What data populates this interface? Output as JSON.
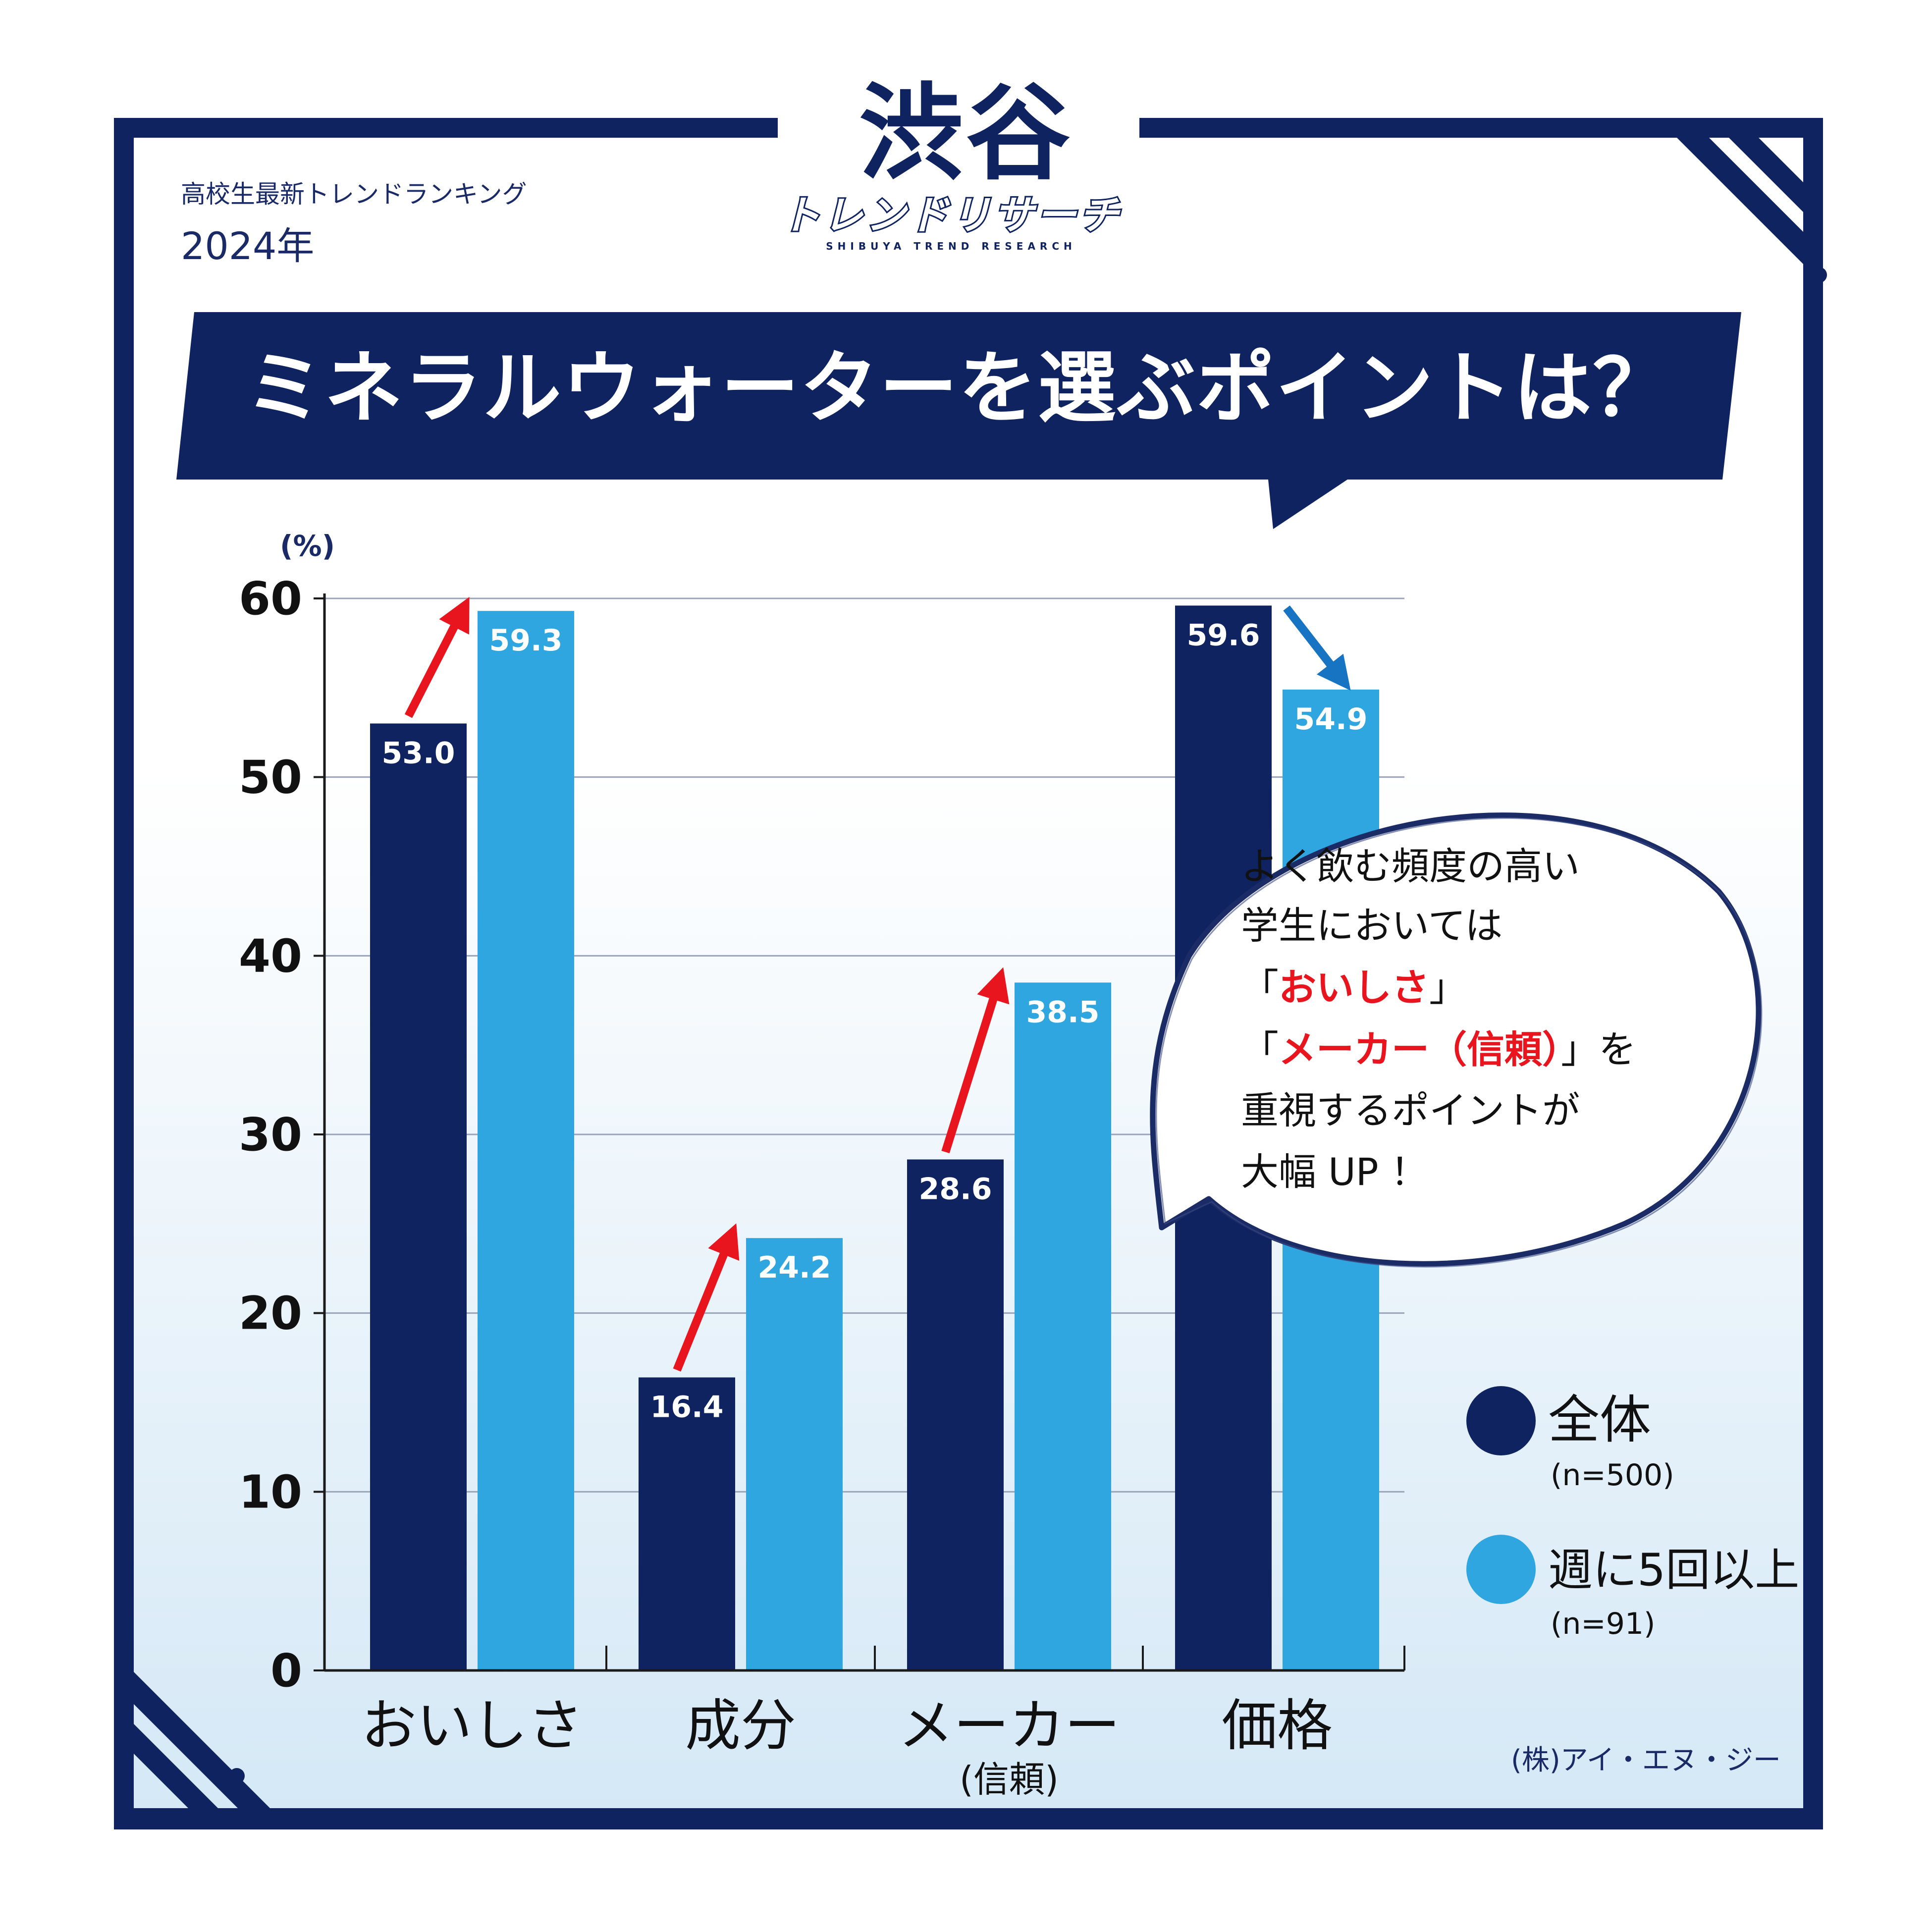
{
  "header": {
    "subtitle": "高校生最新トレンドランキング",
    "year": "2024年",
    "logo_main": "渋谷",
    "logo_script": "トレンドリサーチ",
    "logo_sub": "SHIBUYA TREND RESEARCH"
  },
  "title": "ミネラルウォーターを選ぶポイントは？",
  "chart_data": {
    "type": "bar",
    "ylabel": "(%)",
    "ylim": [
      0,
      60
    ],
    "yticks": [
      "0",
      "10",
      "20",
      "30",
      "40",
      "50",
      "60"
    ],
    "grid": true,
    "categories": [
      {
        "label": "おいしさ",
        "sub": ""
      },
      {
        "label": "成分",
        "sub": ""
      },
      {
        "label": "メーカー",
        "sub": "(信頼)"
      },
      {
        "label": "価格",
        "sub": ""
      }
    ],
    "series": [
      {
        "name": "全体",
        "sample": "(n=500)",
        "color": "#0e2360",
        "values": [
          53.0,
          16.4,
          28.6,
          59.6
        ]
      },
      {
        "name": "週に5回以上",
        "sample": "(n=91)",
        "color": "#2fa6e0",
        "values": [
          59.3,
          24.2,
          38.5,
          54.9
        ]
      }
    ],
    "value_labels": [
      [
        "53.0",
        "16.4",
        "28.6",
        "59.6"
      ],
      [
        "59.3",
        "24.2",
        "38.5",
        "54.9"
      ]
    ],
    "trend_arrows": [
      {
        "category": "おいしさ",
        "direction": "up",
        "color": "#e8141e"
      },
      {
        "category": "成分",
        "direction": "up",
        "color": "#e8141e"
      },
      {
        "category": "メーカー",
        "direction": "up",
        "color": "#e8141e"
      },
      {
        "category": "価格",
        "direction": "down",
        "color": "#1674c2"
      }
    ],
    "legend_position": "bottom-right",
    "annotation": {
      "line1": "よく飲む頻度の高い",
      "line2": "学生においては",
      "q1_open": "「",
      "q1_text": "おいしさ",
      "q1_close": "」",
      "q2_open": "「",
      "q2_text": "メーカー（信頼）",
      "q2_close": "」を",
      "line5": "重視するポイントが",
      "line6": "大幅 UP ！",
      "highlight_color": "#e8141e"
    }
  },
  "footer": {
    "credit": "(株)アイ・エヌ・ジー"
  },
  "colors": {
    "navy": "#0e2360",
    "light_blue": "#2fa6e0",
    "red": "#e8141e"
  }
}
